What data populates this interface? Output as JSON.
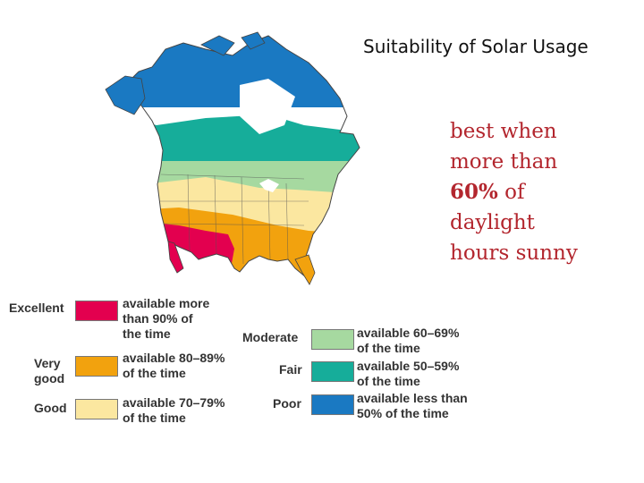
{
  "title": "Suitability of Solar Usage",
  "note": {
    "line1": "best when",
    "line2": "more than",
    "bold_part": "60%",
    "line3_rest": " of",
    "line4": "daylight",
    "line5": "hours sunny"
  },
  "colors": {
    "excellent": "#e3004f",
    "very_good": "#f2a20e",
    "good": "#fbe7a0",
    "moderate": "#a6d9a0",
    "fair": "#16ad9a",
    "poor": "#1a79c2",
    "note_text": "#b3262e"
  },
  "legend": {
    "excellent": {
      "label": "Excellent",
      "desc1": "available more",
      "desc2": "than 90% of",
      "desc3": "the time"
    },
    "very_good": {
      "label1": "Very",
      "label2": "good",
      "desc1": "available 80–89%",
      "desc2": "of the time"
    },
    "good": {
      "label": "Good",
      "desc1": "available 70–79%",
      "desc2": "of the time"
    },
    "moderate": {
      "label": "Moderate",
      "desc1": "available 60–69%",
      "desc2": "of the time"
    },
    "fair": {
      "label": "Fair",
      "desc1": "available 50–59%",
      "desc2": "of the time"
    },
    "poor": {
      "label": "Poor",
      "desc1": "available less than",
      "desc2": "50% of the time"
    }
  }
}
